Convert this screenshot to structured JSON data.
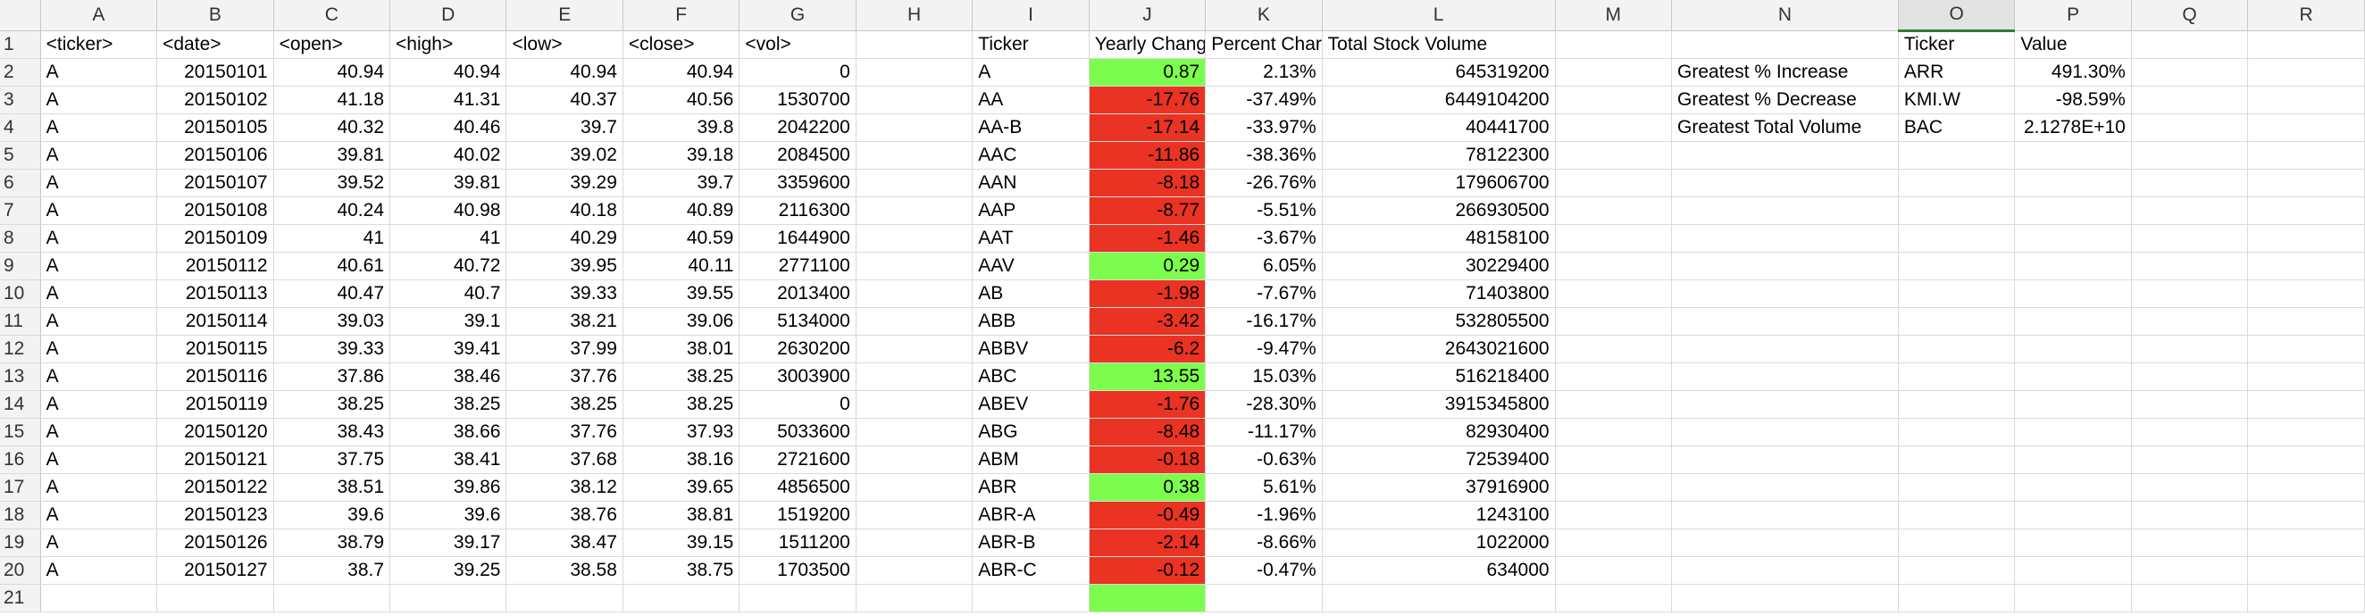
{
  "columns": [
    "A",
    "B",
    "C",
    "D",
    "E",
    "F",
    "G",
    "H",
    "I",
    "J",
    "K",
    "L",
    "M",
    "N",
    "O",
    "P",
    "Q",
    "R"
  ],
  "selected_column": "O",
  "row_numbers": [
    "1",
    "2",
    "3",
    "4",
    "5",
    "6",
    "7",
    "8",
    "9",
    "10",
    "11",
    "12",
    "13",
    "14",
    "15",
    "16",
    "17",
    "18",
    "19",
    "20",
    "21"
  ],
  "raw_headers": [
    "<ticker>",
    "<date>",
    "<open>",
    "<high>",
    "<low>",
    "<close>",
    "<vol>"
  ],
  "raw_rows": [
    [
      "A",
      "20150101",
      "40.94",
      "40.94",
      "40.94",
      "40.94",
      "0"
    ],
    [
      "A",
      "20150102",
      "41.18",
      "41.31",
      "40.37",
      "40.56",
      "1530700"
    ],
    [
      "A",
      "20150105",
      "40.32",
      "40.46",
      "39.7",
      "39.8",
      "2042200"
    ],
    [
      "A",
      "20150106",
      "39.81",
      "40.02",
      "39.02",
      "39.18",
      "2084500"
    ],
    [
      "A",
      "20150107",
      "39.52",
      "39.81",
      "39.29",
      "39.7",
      "3359600"
    ],
    [
      "A",
      "20150108",
      "40.24",
      "40.98",
      "40.18",
      "40.89",
      "2116300"
    ],
    [
      "A",
      "20150109",
      "41",
      "41",
      "40.29",
      "40.59",
      "1644900"
    ],
    [
      "A",
      "20150112",
      "40.61",
      "40.72",
      "39.95",
      "40.11",
      "2771100"
    ],
    [
      "A",
      "20150113",
      "40.47",
      "40.7",
      "39.33",
      "39.55",
      "2013400"
    ],
    [
      "A",
      "20150114",
      "39.03",
      "39.1",
      "38.21",
      "39.06",
      "5134000"
    ],
    [
      "A",
      "20150115",
      "39.33",
      "39.41",
      "37.99",
      "38.01",
      "2630200"
    ],
    [
      "A",
      "20150116",
      "37.86",
      "38.46",
      "37.76",
      "38.25",
      "3003900"
    ],
    [
      "A",
      "20150119",
      "38.25",
      "38.25",
      "38.25",
      "38.25",
      "0"
    ],
    [
      "A",
      "20150120",
      "38.43",
      "38.66",
      "37.76",
      "37.93",
      "5033600"
    ],
    [
      "A",
      "20150121",
      "37.75",
      "38.41",
      "37.68",
      "38.16",
      "2721600"
    ],
    [
      "A",
      "20150122",
      "38.51",
      "39.86",
      "38.12",
      "39.65",
      "4856500"
    ],
    [
      "A",
      "20150123",
      "39.6",
      "39.6",
      "38.76",
      "38.81",
      "1519200"
    ],
    [
      "A",
      "20150126",
      "38.79",
      "39.17",
      "38.47",
      "39.15",
      "1511200"
    ],
    [
      "A",
      "20150127",
      "38.7",
      "39.25",
      "38.58",
      "38.75",
      "1703500"
    ]
  ],
  "summary_headers": [
    "Ticker",
    "Yearly Chang",
    "Percent Char",
    "Total Stock Volume"
  ],
  "summary_rows": [
    {
      "ticker": "A",
      "change": "0.87",
      "percent": "2.13%",
      "volume": "645319200",
      "status": "positive",
      "color": "#7cfc4c"
    },
    {
      "ticker": "AA",
      "change": "-17.76",
      "percent": "-37.49%",
      "volume": "6449104200",
      "status": "negative",
      "color": "#ea3323"
    },
    {
      "ticker": "AA-B",
      "change": "-17.14",
      "percent": "-33.97%",
      "volume": "40441700",
      "status": "negative",
      "color": "#ea3323"
    },
    {
      "ticker": "AAC",
      "change": "-11.86",
      "percent": "-38.36%",
      "volume": "78122300",
      "status": "negative",
      "color": "#ea3323"
    },
    {
      "ticker": "AAN",
      "change": "-8.18",
      "percent": "-26.76%",
      "volume": "179606700",
      "status": "negative",
      "color": "#ea3323"
    },
    {
      "ticker": "AAP",
      "change": "-8.77",
      "percent": "-5.51%",
      "volume": "266930500",
      "status": "negative",
      "color": "#ea3323"
    },
    {
      "ticker": "AAT",
      "change": "-1.46",
      "percent": "-3.67%",
      "volume": "48158100",
      "status": "negative",
      "color": "#ea3323"
    },
    {
      "ticker": "AAV",
      "change": "0.29",
      "percent": "6.05%",
      "volume": "30229400",
      "status": "positive",
      "color": "#7cfc4c"
    },
    {
      "ticker": "AB",
      "change": "-1.98",
      "percent": "-7.67%",
      "volume": "71403800",
      "status": "negative",
      "color": "#ea3323"
    },
    {
      "ticker": "ABB",
      "change": "-3.42",
      "percent": "-16.17%",
      "volume": "532805500",
      "status": "negative",
      "color": "#ea3323"
    },
    {
      "ticker": "ABBV",
      "change": "-6.2",
      "percent": "-9.47%",
      "volume": "2643021600",
      "status": "negative",
      "color": "#ea3323"
    },
    {
      "ticker": "ABC",
      "change": "13.55",
      "percent": "15.03%",
      "volume": "516218400",
      "status": "positive",
      "color": "#7cfc4c"
    },
    {
      "ticker": "ABEV",
      "change": "-1.76",
      "percent": "-28.30%",
      "volume": "3915345800",
      "status": "negative",
      "color": "#ea3323"
    },
    {
      "ticker": "ABG",
      "change": "-8.48",
      "percent": "-11.17%",
      "volume": "82930400",
      "status": "negative",
      "color": "#ea3323"
    },
    {
      "ticker": "ABM",
      "change": "-0.18",
      "percent": "-0.63%",
      "volume": "72539400",
      "status": "negative",
      "color": "#ea3323"
    },
    {
      "ticker": "ABR",
      "change": "0.38",
      "percent": "5.61%",
      "volume": "37916900",
      "status": "positive",
      "color": "#7cfc4c"
    },
    {
      "ticker": "ABR-A",
      "change": "-0.49",
      "percent": "-1.96%",
      "volume": "1243100",
      "status": "negative",
      "color": "#ea3323"
    },
    {
      "ticker": "ABR-B",
      "change": "-2.14",
      "percent": "-8.66%",
      "volume": "1022000",
      "status": "negative",
      "color": "#ea3323"
    },
    {
      "ticker": "ABR-C",
      "change": "-0.12",
      "percent": "-0.47%",
      "volume": "634000",
      "status": "negative",
      "color": "#ea3323"
    },
    {
      "ticker": "",
      "change": "",
      "percent": "",
      "volume": "",
      "status": "positive",
      "color": "#7cfc4c"
    }
  ],
  "greatest_headers": [
    "Ticker",
    "Value"
  ],
  "greatest_rows": [
    {
      "label": "Greatest % Increase",
      "ticker": "ARR",
      "value": "491.30%"
    },
    {
      "label": "Greatest % Decrease",
      "ticker": "KMI.W",
      "value": "-98.59%"
    },
    {
      "label": "Greatest Total Volume",
      "ticker": "BAC",
      "value": "2.1278E+10"
    }
  ]
}
